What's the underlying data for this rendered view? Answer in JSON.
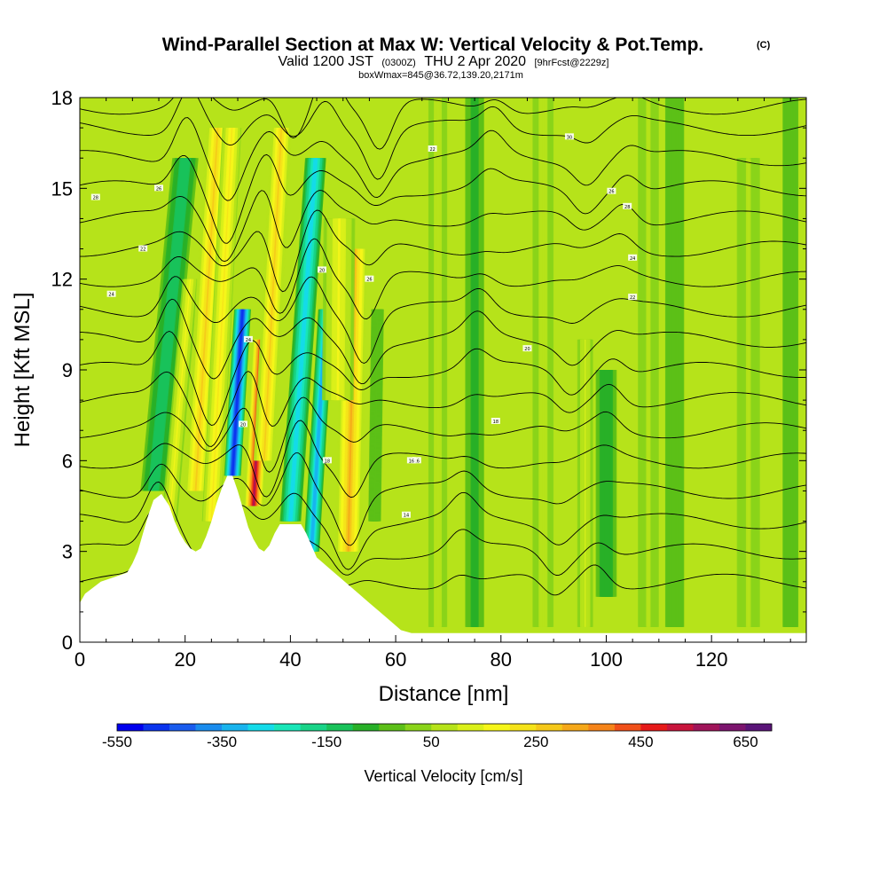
{
  "header": {
    "title": "Wind-Parallel Section at Max W: Vertical Velocity & Pot.Temp.",
    "copyright": "(C)",
    "valid_prefix": "Valid 1200 JST",
    "valid_utc": "(0300Z)",
    "valid_date": "THU 2 Apr 2020",
    "forecast_info": "[9hrFcst@2229z]",
    "box_info": "boxWmax=845@36.72,139.20,2171m"
  },
  "chart_data": {
    "type": "heatmap",
    "title": "Wind-Parallel Section at Max W: Vertical Velocity & Pot.Temp.",
    "xlabel": "Distance [nm]",
    "ylabel": "Height [Kft MSL]",
    "xlim": [
      0,
      138
    ],
    "ylim": [
      0,
      18
    ],
    "x_ticks": [
      "0",
      "20",
      "40",
      "60",
      "80",
      "100",
      "120"
    ],
    "y_ticks": [
      "0",
      "3",
      "6",
      "9",
      "12",
      "15",
      "18"
    ],
    "colorbar": {
      "title": "Vertical Velocity [cm/s]",
      "labels": [
        "-550",
        "-350",
        "-150",
        "50",
        "250",
        "450",
        "650"
      ],
      "min": -550,
      "max": 700,
      "step": 50
    },
    "terrain_profile": [
      [
        0,
        1.3
      ],
      [
        1,
        1.6
      ],
      [
        4,
        2.0
      ],
      [
        9,
        2.3
      ],
      [
        10,
        2.6
      ],
      [
        11,
        3.0
      ],
      [
        12,
        3.6
      ],
      [
        13,
        4.2
      ],
      [
        14,
        4.7
      ],
      [
        15.5,
        4.9
      ],
      [
        17,
        4.5
      ],
      [
        18,
        4.0
      ],
      [
        19,
        3.6
      ],
      [
        20,
        3.3
      ],
      [
        21,
        3.1
      ],
      [
        22,
        3.0
      ],
      [
        23,
        3.1
      ],
      [
        24,
        3.5
      ],
      [
        25,
        4.0
      ],
      [
        26,
        4.6
      ],
      [
        27,
        5.1
      ],
      [
        28,
        5.5
      ],
      [
        29,
        5.5
      ],
      [
        30,
        5.0
      ],
      [
        31,
        4.4
      ],
      [
        32,
        3.8
      ],
      [
        33,
        3.4
      ],
      [
        34,
        3.1
      ],
      [
        35,
        3.0
      ],
      [
        36,
        3.2
      ],
      [
        37,
        3.6
      ],
      [
        38,
        3.9
      ],
      [
        42,
        3.9
      ],
      [
        43,
        3.6
      ],
      [
        44,
        3.2
      ],
      [
        45,
        2.8
      ],
      [
        47,
        2.5
      ],
      [
        49,
        2.2
      ],
      [
        51,
        1.9
      ],
      [
        53,
        1.6
      ],
      [
        55,
        1.3
      ],
      [
        57,
        1.0
      ],
      [
        59,
        0.7
      ],
      [
        61,
        0.4
      ],
      [
        63,
        0.3
      ],
      [
        138,
        0.3
      ]
    ],
    "vertical_velocity_features": [
      {
        "x": 14,
        "z0": 5,
        "z1": 16,
        "slant": -0.55,
        "width": 2.5,
        "value": -150
      },
      {
        "x": 17,
        "z0": 4,
        "z1": 12,
        "slant": -0.5,
        "width": 1.5,
        "value": 150
      },
      {
        "x": 22,
        "z0": 5,
        "z1": 17,
        "slant": -0.35,
        "width": 2.2,
        "value": 250
      },
      {
        "x": 25,
        "z0": 4,
        "z1": 17,
        "slant": -0.3,
        "width": 1.8,
        "value": 200
      },
      {
        "x": 29,
        "z0": 5.5,
        "z1": 11,
        "slant": -0.35,
        "width": 1.6,
        "value": -500
      },
      {
        "x": 33,
        "z0": 4.5,
        "z1": 10,
        "slant": -0.3,
        "width": 1.6,
        "value": 550
      },
      {
        "x": 35,
        "z0": 6,
        "z1": 17,
        "slant": -0.3,
        "width": 2.0,
        "value": 250
      },
      {
        "x": 40,
        "z0": 4,
        "z1": 16,
        "slant": -0.4,
        "width": 2.0,
        "value": -300
      },
      {
        "x": 44,
        "z0": 3,
        "z1": 11,
        "slant": -0.35,
        "width": 1.5,
        "value": -350
      },
      {
        "x": 51,
        "z0": 3,
        "z1": 13,
        "slant": -0.12,
        "width": 2.5,
        "value": 300
      },
      {
        "x": 49,
        "z0": 8,
        "z1": 14,
        "slant": -0.05,
        "width": 3.0,
        "value": 150
      },
      {
        "x": 56,
        "z0": 4,
        "z1": 11,
        "slant": -0.08,
        "width": 1.2,
        "value": -50
      },
      {
        "x": 68,
        "z0": 0.5,
        "z1": 18,
        "slant": 0.0,
        "width": 1.8,
        "value": 75
      },
      {
        "x": 75,
        "z0": 0.5,
        "z1": 18,
        "slant": 0.0,
        "width": 1.8,
        "value": -75
      },
      {
        "x": 88,
        "z0": 0.5,
        "z1": 18,
        "slant": 0.0,
        "width": 2.0,
        "value": 75
      },
      {
        "x": 96,
        "z0": 0.5,
        "z1": 10,
        "slant": 0.0,
        "width": 1.5,
        "value": 100
      },
      {
        "x": 100,
        "z0": 1.5,
        "z1": 9,
        "slant": 0.0,
        "width": 2.0,
        "value": -100
      },
      {
        "x": 108,
        "z0": 0.5,
        "z1": 18,
        "slant": 0.0,
        "width": 2.0,
        "value": 60
      },
      {
        "x": 113,
        "z0": 0.5,
        "z1": 18,
        "slant": 0.0,
        "width": 1.8,
        "value": -50
      },
      {
        "x": 127,
        "z0": 0.5,
        "z1": 16,
        "slant": 0.0,
        "width": 2.2,
        "value": 60
      },
      {
        "x": 135,
        "z0": 0.5,
        "z1": 18,
        "slant": 0.0,
        "width": 1.5,
        "value": -20
      }
    ],
    "theta_isentropes": {
      "base_level_kft": [
        2,
        3,
        4,
        5,
        6,
        7,
        8,
        9,
        10,
        11,
        12,
        13,
        14,
        15,
        16,
        17,
        17.7
      ],
      "wave_centers_nm": [
        14,
        22,
        30,
        33,
        40,
        50,
        72,
        90,
        98
      ]
    },
    "contour_labels": [
      {
        "text": "14",
        "x": 62,
        "z": 4.2
      },
      {
        "text": "16",
        "x": 64,
        "z": 6.0
      },
      {
        "text": "18",
        "x": 79,
        "z": 7.3
      },
      {
        "text": "20",
        "x": 85,
        "z": 9.7
      },
      {
        "text": "22",
        "x": 105,
        "z": 11.4
      },
      {
        "text": "24",
        "x": 105,
        "z": 12.7
      },
      {
        "text": "26",
        "x": 101,
        "z": 14.9
      },
      {
        "text": "28",
        "x": 104,
        "z": 14.4
      },
      {
        "text": "30",
        "x": 93,
        "z": 16.7
      },
      {
        "text": "28",
        "x": 3,
        "z": 14.7
      },
      {
        "text": "26",
        "x": 15,
        "z": 15.0
      },
      {
        "text": "24",
        "x": 6,
        "z": 11.5
      },
      {
        "text": "22",
        "x": 12,
        "z": 13.0
      },
      {
        "text": "20",
        "x": 46,
        "z": 12.3
      },
      {
        "text": "18",
        "x": 47,
        "z": 6.0
      },
      {
        "text": "16",
        "x": 63,
        "z": 6.0
      },
      {
        "text": "26",
        "x": 55,
        "z": 12.0
      },
      {
        "text": "22",
        "x": 67,
        "z": 16.3
      },
      {
        "text": "24",
        "x": 32,
        "z": 10.0
      },
      {
        "text": "20",
        "x": 31,
        "z": 7.2
      }
    ]
  }
}
